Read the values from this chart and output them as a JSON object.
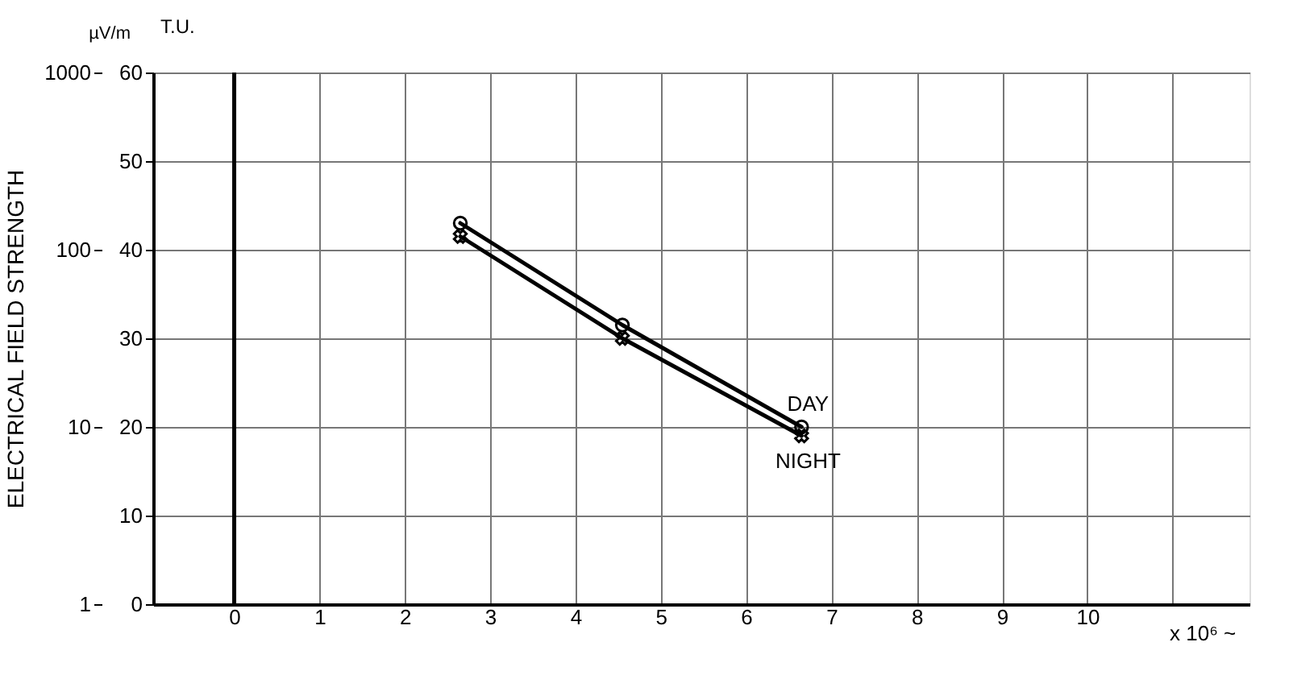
{
  "chart_data": {
    "type": "line",
    "xlabel": "x 10⁶ ~",
    "ylabel": "T.U.",
    "y2label": "ELECTRICAL FIELD STRENGTH",
    "annotations": [
      "µV/m"
    ],
    "x": [
      2.65,
      4.55,
      6.65
    ],
    "series": [
      {
        "name": "DAY",
        "color": "#000000",
        "marker": "circle",
        "values": [
          43,
          31.5,
          20
        ]
      },
      {
        "name": "NIGHT",
        "color": "#000000",
        "marker": "cross",
        "values": [
          41.5,
          30,
          19
        ]
      }
    ],
    "xlim": [
      -0.95,
      11.9
    ],
    "xticks": [
      0,
      1,
      2,
      3,
      4,
      5,
      6,
      7,
      8,
      9,
      10,
      {
        "value": 11,
        "label": null
      }
    ],
    "ylim": [
      0,
      60
    ],
    "yticks": [
      0,
      10,
      20,
      30,
      40,
      50,
      60
    ],
    "y2lim": [
      1,
      1000
    ],
    "y2ticks": [
      1,
      10,
      100,
      1000
    ],
    "log": "y2",
    "ref_lines": [
      {
        "axis": "x",
        "value": 0,
        "color": "#000000"
      }
    ],
    "grid": true,
    "legend": false,
    "line_style": "solid"
  }
}
